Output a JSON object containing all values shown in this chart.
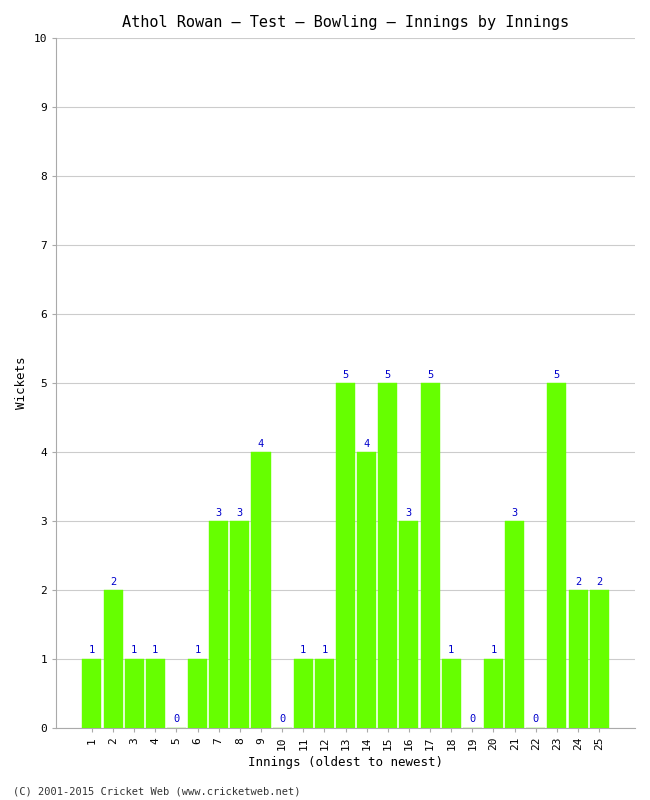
{
  "title": "Athol Rowan – Test – Bowling – Innings by Innings",
  "xlabel": "Innings (oldest to newest)",
  "ylabel": "Wickets",
  "innings": [
    1,
    2,
    3,
    4,
    5,
    6,
    7,
    8,
    9,
    10,
    11,
    12,
    13,
    14,
    15,
    16,
    17,
    18,
    19,
    20,
    21,
    22,
    23,
    24,
    25
  ],
  "wickets": [
    1,
    2,
    1,
    1,
    0,
    1,
    3,
    3,
    4,
    0,
    1,
    1,
    5,
    4,
    5,
    3,
    5,
    1,
    0,
    1,
    3,
    0,
    5,
    2,
    2
  ],
  "bar_color": "#66ff00",
  "bar_edge_color": "#66ff00",
  "label_color": "#0000cc",
  "ylim": [
    0,
    10
  ],
  "yticks": [
    0,
    1,
    2,
    3,
    4,
    5,
    6,
    7,
    8,
    9,
    10
  ],
  "grid_color": "#cccccc",
  "background_color": "#ffffff",
  "title_fontsize": 11,
  "axis_label_fontsize": 9,
  "tick_label_fontsize": 8,
  "bar_label_fontsize": 7.5,
  "footer_text": "(C) 2001-2015 Cricket Web (www.cricketweb.net)"
}
